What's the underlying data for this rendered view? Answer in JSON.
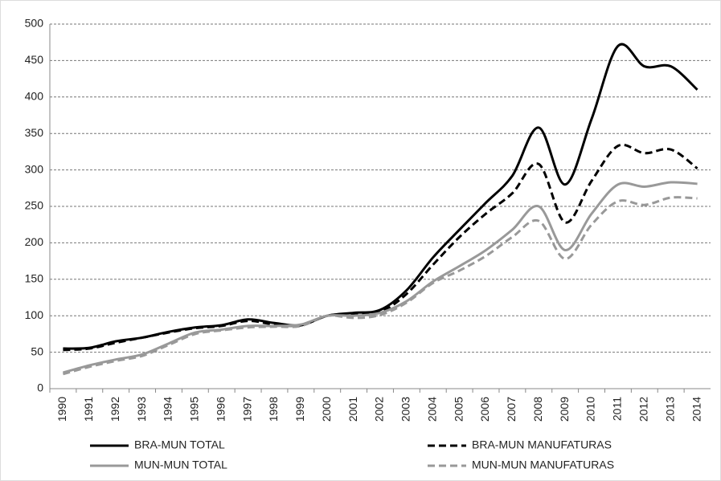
{
  "chart_data": {
    "type": "line",
    "categories": [
      "1990",
      "1991",
      "1992",
      "1993",
      "1994",
      "1995",
      "1996",
      "1997",
      "1998",
      "1999",
      "2000",
      "2001",
      "2002",
      "2003",
      "2004",
      "2005",
      "2006",
      "2007",
      "2008",
      "2009",
      "2010",
      "2011",
      "2012",
      "2013",
      "2014"
    ],
    "series": [
      {
        "name": "BRA-MUN TOTAL",
        "color": "#000000",
        "dashed": false,
        "values": [
          55,
          56,
          65,
          70,
          78,
          84,
          87,
          95,
          90,
          87,
          100,
          104,
          108,
          135,
          180,
          218,
          255,
          292,
          358,
          280,
          370,
          470,
          442,
          442,
          410
        ]
      },
      {
        "name": "BRA-MUN MANUFATURAS",
        "color": "#000000",
        "dashed": true,
        "values": [
          53,
          55,
          63,
          70,
          77,
          83,
          86,
          93,
          88,
          87,
          100,
          102,
          105,
          130,
          170,
          208,
          240,
          268,
          308,
          228,
          285,
          333,
          323,
          328,
          302
        ]
      },
      {
        "name": "MUN-MUN TOTAL",
        "color": "#999999",
        "dashed": false,
        "values": [
          22,
          32,
          40,
          47,
          62,
          77,
          81,
          86,
          86,
          88,
          100,
          100,
          104,
          120,
          147,
          168,
          190,
          218,
          250,
          190,
          240,
          280,
          277,
          283,
          281
        ]
      },
      {
        "name": "MUN-MUN MANUFATURAS",
        "color": "#999999",
        "dashed": true,
        "values": [
          20,
          30,
          38,
          45,
          60,
          75,
          80,
          84,
          85,
          86,
          100,
          97,
          101,
          118,
          145,
          162,
          182,
          208,
          230,
          178,
          225,
          257,
          252,
          262,
          261
        ]
      }
    ],
    "ylim": [
      0,
      500
    ],
    "yticks": [
      0,
      50,
      100,
      150,
      200,
      250,
      300,
      350,
      400,
      450,
      500
    ],
    "grid": true,
    "legend": "bottom"
  }
}
